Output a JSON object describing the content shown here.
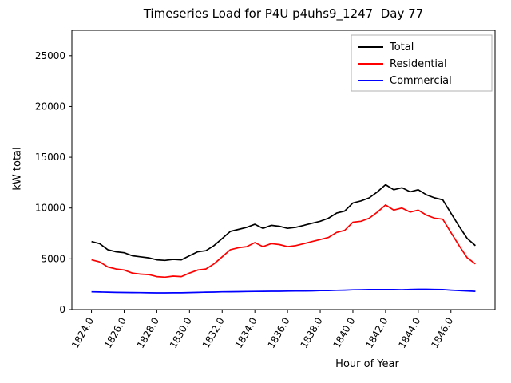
{
  "figure": {
    "title": "Timeseries Load for P4U p4uhs9_1247  Day 77",
    "xlabel": "Hour of Year",
    "ylabel": "kW total",
    "background": "#ffffff"
  },
  "chart_data": {
    "type": "line",
    "title": "Timeseries Load for P4U p4uhs9_1247  Day 77",
    "xlabel": "Hour of Year",
    "ylabel": "kW total",
    "xlim": [
      1822.8,
      1848.7
    ],
    "ylim": [
      0,
      27500
    ],
    "grid": false,
    "legend_position": "upper right",
    "xticks": [
      1824.0,
      1826.0,
      1828.0,
      1830.0,
      1832.0,
      1834.0,
      1836.0,
      1838.0,
      1840.0,
      1842.0,
      1844.0,
      1846.0
    ],
    "xtick_labels": [
      "1824.0",
      "1826.0",
      "1828.0",
      "1830.0",
      "1832.0",
      "1834.0",
      "1836.0",
      "1838.0",
      "1840.0",
      "1842.0",
      "1844.0",
      "1846.0"
    ],
    "yticks": [
      0,
      5000,
      10000,
      15000,
      20000,
      25000
    ],
    "ytick_labels": [
      "0",
      "5000",
      "10000",
      "15000",
      "20000",
      "25000"
    ],
    "x": [
      1824.0,
      1824.5,
      1825.0,
      1825.5,
      1826.0,
      1826.5,
      1827.0,
      1827.5,
      1828.0,
      1828.5,
      1829.0,
      1829.5,
      1830.0,
      1830.5,
      1831.0,
      1831.5,
      1832.0,
      1832.5,
      1833.0,
      1833.5,
      1834.0,
      1834.5,
      1835.0,
      1835.5,
      1836.0,
      1836.5,
      1837.0,
      1837.5,
      1838.0,
      1838.5,
      1839.0,
      1839.5,
      1840.0,
      1840.5,
      1841.0,
      1841.5,
      1842.0,
      1842.5,
      1843.0,
      1843.5,
      1844.0,
      1844.5,
      1845.0,
      1845.5,
      1846.0,
      1846.5,
      1847.0,
      1847.5
    ],
    "series": [
      {
        "name": "Total",
        "color": "#000000",
        "values": [
          6700,
          6500,
          5900,
          5700,
          5600,
          5300,
          5200,
          5100,
          4900,
          4850,
          4950,
          4900,
          5300,
          5700,
          5800,
          6300,
          7000,
          7700,
          7900,
          8100,
          8400,
          8000,
          8300,
          8200,
          8000,
          8100,
          8300,
          8500,
          8700,
          9000,
          9500,
          9700,
          10500,
          10700,
          11000,
          11600,
          12300,
          11800,
          12000,
          11600,
          11800,
          11300,
          11000,
          10800,
          9500,
          8200,
          7000,
          6300
        ]
      },
      {
        "name": "Residential",
        "color": "#ff0000",
        "values": [
          4900,
          4700,
          4200,
          4000,
          3900,
          3600,
          3500,
          3450,
          3250,
          3200,
          3300,
          3250,
          3600,
          3900,
          4000,
          4500,
          5200,
          5900,
          6100,
          6200,
          6600,
          6200,
          6500,
          6400,
          6200,
          6300,
          6500,
          6700,
          6900,
          7100,
          7600,
          7800,
          8600,
          8700,
          9000,
          9600,
          10300,
          9800,
          10000,
          9600,
          9800,
          9300,
          9000,
          8900,
          7600,
          6300,
          5100,
          4500
        ]
      },
      {
        "name": "Commercial",
        "color": "#0000ff",
        "values": [
          1750,
          1740,
          1720,
          1700,
          1690,
          1680,
          1670,
          1660,
          1650,
          1650,
          1660,
          1660,
          1680,
          1700,
          1720,
          1730,
          1750,
          1760,
          1770,
          1780,
          1790,
          1800,
          1810,
          1810,
          1820,
          1830,
          1840,
          1850,
          1870,
          1880,
          1900,
          1920,
          1950,
          1960,
          1970,
          1980,
          1980,
          1970,
          1960,
          1990,
          2000,
          2000,
          1990,
          1970,
          1920,
          1880,
          1840,
          1800
        ]
      }
    ]
  }
}
